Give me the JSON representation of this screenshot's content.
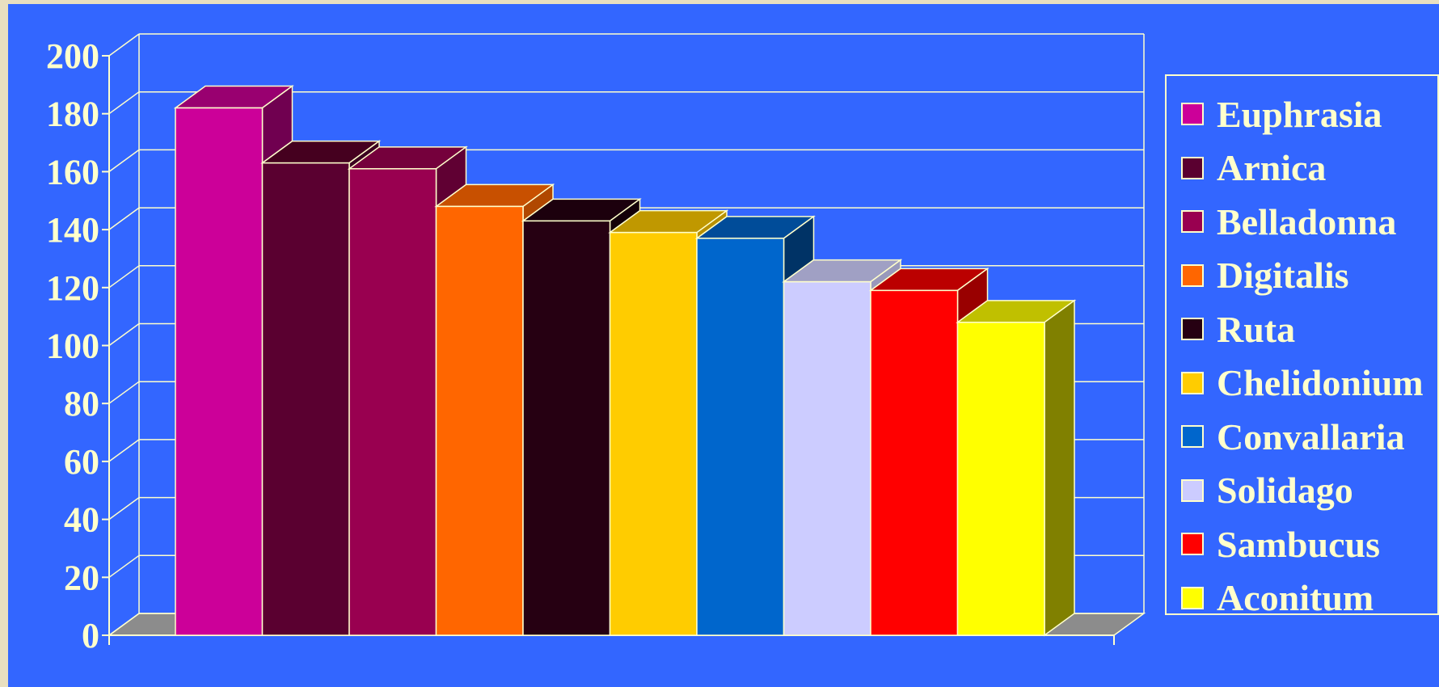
{
  "chart_data": {
    "type": "bar",
    "categories": [
      "Euphrasia",
      "Arnica",
      "Belladonna",
      "Digitalis",
      "Ruta",
      "Chelidonium",
      "Convallaria",
      "Solidago",
      "Sambucus",
      "Aconitum"
    ],
    "values": [
      182,
      163,
      161,
      148,
      143,
      139,
      137,
      122,
      119,
      108
    ],
    "ylim": [
      0,
      200
    ],
    "yticks": [
      "0",
      "20",
      "40",
      "60",
      "80",
      "100",
      "120",
      "140",
      "160",
      "180",
      "200"
    ],
    "grid": true,
    "legend_position": "right",
    "style": "3d",
    "colors": [
      "#cc0099",
      "#5a0030",
      "#990050",
      "#ff6600",
      "#260012",
      "#ffcc00",
      "#0066cc",
      "#ccccff",
      "#ff0000",
      "#ffff00"
    ],
    "side_colors": [
      "#700050",
      "#3a0020",
      "#600033",
      "#b04800",
      "#140008",
      "#b89000",
      "#003366",
      "#9999bb",
      "#990000",
      "#808000"
    ],
    "top_colors": [
      "#990070",
      "#45001f",
      "#75003c",
      "#c85000",
      "#1c000d",
      "#c09800",
      "#004c99",
      "#a0a0c4",
      "#bb0000",
      "#c0c000"
    ]
  }
}
